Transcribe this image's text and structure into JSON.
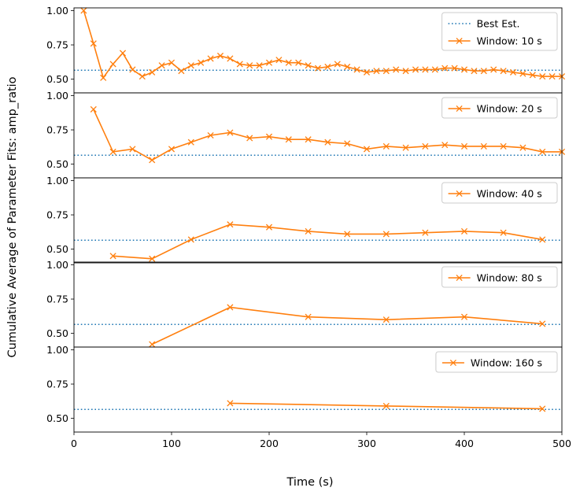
{
  "chart_data": {
    "type": "line",
    "ylabel": "Cumulative Average of Parameter Fits: amp_ratio",
    "xlabel": "Time (s)",
    "xlim": [
      0,
      500
    ],
    "ylim": [
      0.4,
      1.02
    ],
    "xticks": [
      "0",
      "100",
      "200",
      "300",
      "400",
      "500"
    ],
    "yticks": [
      {
        "value": 0.5,
        "label": "0.50"
      },
      {
        "value": 0.75,
        "label": "0.75"
      },
      {
        "value": 1.0,
        "label": "1.00"
      }
    ],
    "best_estimate": {
      "name": "Best Est.",
      "value": 0.565,
      "color": "#1f77b4"
    },
    "series_color": "#ff7f0e",
    "panels": [
      {
        "name": "Window: 10 s",
        "show_best_in_legend": true,
        "x": [
          10,
          20,
          30,
          40,
          50,
          60,
          70,
          80,
          90,
          100,
          110,
          120,
          130,
          140,
          150,
          160,
          170,
          180,
          190,
          200,
          210,
          220,
          230,
          240,
          250,
          260,
          270,
          280,
          290,
          300,
          310,
          320,
          330,
          340,
          350,
          360,
          370,
          380,
          390,
          400,
          410,
          420,
          430,
          440,
          450,
          460,
          470,
          480,
          490,
          500
        ],
        "y": [
          1.0,
          0.76,
          0.51,
          0.61,
          0.69,
          0.57,
          0.52,
          0.55,
          0.6,
          0.62,
          0.56,
          0.6,
          0.62,
          0.65,
          0.67,
          0.65,
          0.61,
          0.6,
          0.6,
          0.62,
          0.64,
          0.62,
          0.62,
          0.6,
          0.58,
          0.59,
          0.61,
          0.59,
          0.57,
          0.55,
          0.56,
          0.56,
          0.57,
          0.56,
          0.57,
          0.57,
          0.57,
          0.58,
          0.58,
          0.57,
          0.56,
          0.56,
          0.57,
          0.56,
          0.55,
          0.54,
          0.53,
          0.52,
          0.52,
          0.52
        ]
      },
      {
        "name": "Window: 20 s",
        "show_best_in_legend": false,
        "x": [
          20,
          40,
          60,
          80,
          100,
          120,
          140,
          160,
          180,
          200,
          220,
          240,
          260,
          280,
          300,
          320,
          340,
          360,
          380,
          400,
          420,
          440,
          460,
          480,
          500
        ],
        "y": [
          0.9,
          0.59,
          0.61,
          0.53,
          0.61,
          0.66,
          0.71,
          0.73,
          0.69,
          0.7,
          0.68,
          0.68,
          0.66,
          0.65,
          0.61,
          0.63,
          0.62,
          0.63,
          0.64,
          0.63,
          0.63,
          0.63,
          0.62,
          0.59,
          0.59
        ]
      },
      {
        "name": "Window: 40 s",
        "show_best_in_legend": false,
        "x": [
          40,
          80,
          120,
          160,
          200,
          240,
          280,
          320,
          360,
          400,
          440,
          480
        ],
        "y": [
          0.45,
          0.43,
          0.57,
          0.68,
          0.66,
          0.63,
          0.61,
          0.61,
          0.62,
          0.63,
          0.62,
          0.57
        ]
      },
      {
        "name": "Window: 80 s",
        "show_best_in_legend": false,
        "x": [
          80,
          160,
          240,
          320,
          400,
          480
        ],
        "y": [
          0.42,
          0.69,
          0.62,
          0.6,
          0.62,
          0.57
        ]
      },
      {
        "name": "Window: 160 s",
        "show_best_in_legend": false,
        "x": [
          160,
          320,
          480
        ],
        "y": [
          0.61,
          0.59,
          0.57
        ]
      }
    ]
  }
}
